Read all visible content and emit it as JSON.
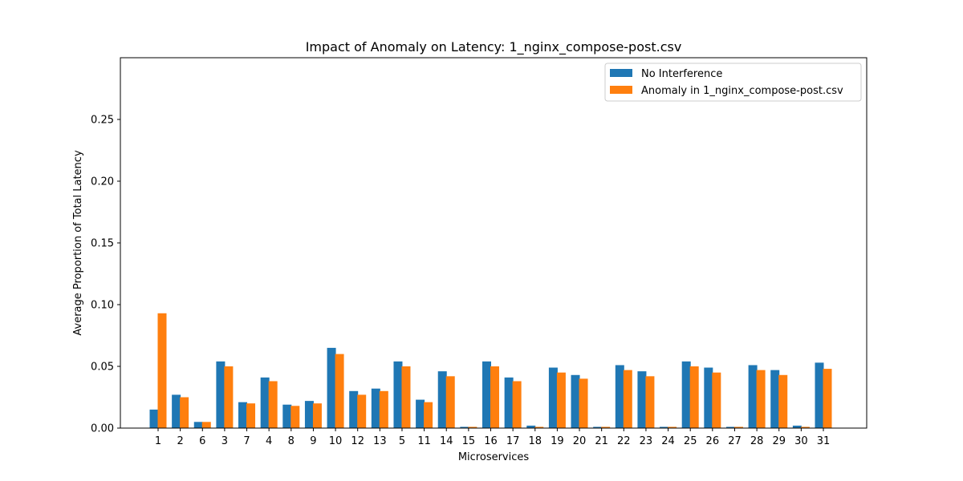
{
  "chart_data": {
    "type": "bar",
    "title": "Impact of Anomaly on Latency: 1_nginx_compose-post.csv",
    "xlabel": "Microservices",
    "ylabel": "Average Proportion of Total Latency",
    "ylim": [
      0,
      0.3
    ],
    "yticks": [
      "0.00",
      "0.05",
      "0.10",
      "0.15",
      "0.20",
      "0.25"
    ],
    "grid": false,
    "legend_position": "top-right",
    "categories": [
      "1",
      "2",
      "6",
      "3",
      "7",
      "4",
      "8",
      "9",
      "10",
      "12",
      "13",
      "5",
      "11",
      "14",
      "15",
      "16",
      "17",
      "18",
      "19",
      "20",
      "21",
      "22",
      "23",
      "24",
      "25",
      "26",
      "27",
      "28",
      "29",
      "30",
      "31"
    ],
    "series": [
      {
        "name": "No Interference",
        "color": "#1f77b4",
        "values": [
          0.015,
          0.027,
          0.005,
          0.054,
          0.021,
          0.041,
          0.019,
          0.022,
          0.065,
          0.03,
          0.032,
          0.054,
          0.023,
          0.046,
          0.001,
          0.054,
          0.041,
          0.002,
          0.049,
          0.043,
          0.001,
          0.051,
          0.046,
          0.001,
          0.054,
          0.049,
          0.001,
          0.051,
          0.047,
          0.002,
          0.053
        ]
      },
      {
        "name": "Anomaly in 1_nginx_compose-post.csv",
        "color": "#ff7f0e",
        "values": [
          0.093,
          0.025,
          0.005,
          0.05,
          0.02,
          0.038,
          0.018,
          0.02,
          0.06,
          0.027,
          0.03,
          0.05,
          0.021,
          0.042,
          0.001,
          0.05,
          0.038,
          0.001,
          0.045,
          0.04,
          0.001,
          0.047,
          0.042,
          0.001,
          0.05,
          0.045,
          0.001,
          0.047,
          0.043,
          0.001,
          0.048
        ]
      }
    ]
  }
}
